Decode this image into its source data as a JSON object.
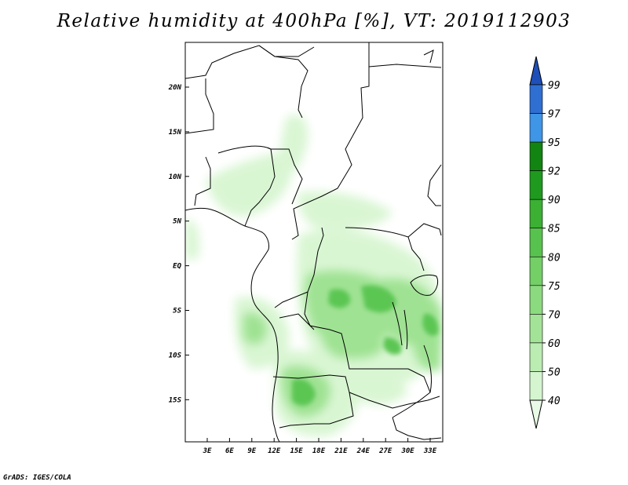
{
  "title": "Relative humidity at 400hPa [%], VT: 2019112903",
  "credit": "GrADS: IGES/COLA",
  "map": {
    "lon_ticks": [
      "3E",
      "6E",
      "9E",
      "12E",
      "15E",
      "18E",
      "21E",
      "24E",
      "27E",
      "30E",
      "33E"
    ],
    "lat_ticks": [
      "20N",
      "15N",
      "10N",
      "5N",
      "EQ",
      "5S",
      "10S",
      "15S"
    ]
  },
  "colorbar": {
    "levels": [
      "40",
      "50",
      "60",
      "70",
      "75",
      "80",
      "85",
      "90",
      "92",
      "95",
      "97",
      "99"
    ],
    "colors": [
      "#e9fbe6",
      "#d4f5cf",
      "#bbecb2",
      "#a3e397",
      "#8cda7f",
      "#73cf66",
      "#58c24e",
      "#3bb033",
      "#1f9a1f",
      "#118411",
      "#3f95e6",
      "#2f6fd2",
      "#1f4fb8"
    ]
  }
}
